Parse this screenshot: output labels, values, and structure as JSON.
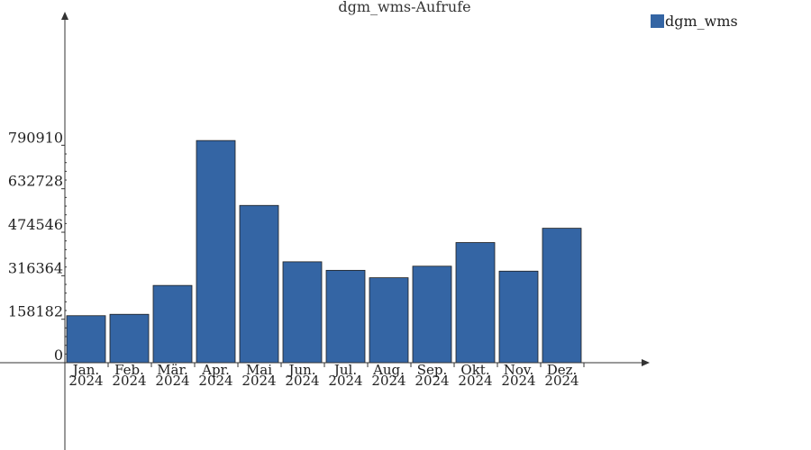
{
  "chart_data": {
    "type": "bar",
    "title": "dgm_wms-Aufrufe",
    "categories": [
      [
        "Jan.",
        "2024"
      ],
      [
        "Feb.",
        "2024"
      ],
      [
        "Mär.",
        "2024"
      ],
      [
        "Apr.",
        "2024"
      ],
      [
        "Mai",
        "2024"
      ],
      [
        "Jun.",
        "2024"
      ],
      [
        "Jul.",
        "2024"
      ],
      [
        "Aug.",
        "2024"
      ],
      [
        "Sep.",
        "2024"
      ],
      [
        "Okt.",
        "2024"
      ],
      [
        "Nov.",
        "2024"
      ],
      [
        "Dez.",
        "2024"
      ]
    ],
    "series": [
      {
        "name": "dgm_wms",
        "color": "#3465a4",
        "values": [
          171000,
          176000,
          281000,
          808000,
          572000,
          367000,
          336000,
          309000,
          351000,
          437000,
          333000,
          489000
        ]
      }
    ],
    "y_ticks": [
      "0",
      "158182",
      "316364",
      "474546",
      "632728",
      "790910"
    ],
    "ylim": [
      0,
      1090000
    ],
    "xlabel": "",
    "ylabel": "",
    "grid": false,
    "legend_position": "top-right"
  }
}
